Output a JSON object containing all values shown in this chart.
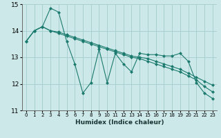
{
  "xlabel": "Humidex (Indice chaleur)",
  "bg_color": "#cce8e8",
  "grid_color": "#a8d0d0",
  "line_color": "#1a7a6e",
  "xlim": [
    -0.5,
    23.5
  ],
  "ylim": [
    11,
    15
  ],
  "yticks": [
    11,
    12,
    13,
    14,
    15
  ],
  "xticks": [
    0,
    1,
    2,
    3,
    4,
    5,
    6,
    7,
    8,
    9,
    10,
    11,
    12,
    13,
    14,
    15,
    16,
    17,
    18,
    19,
    20,
    21,
    22,
    23
  ],
  "line1_x": [
    0,
    1,
    2,
    3,
    4,
    5,
    6,
    7,
    8,
    9,
    10,
    11,
    12,
    13,
    14,
    15,
    16,
    17,
    18,
    19,
    20,
    21,
    22,
    23
  ],
  "line1_y": [
    13.6,
    14.0,
    14.15,
    14.85,
    14.7,
    13.6,
    12.75,
    11.65,
    12.05,
    13.3,
    12.05,
    13.15,
    12.75,
    12.45,
    13.15,
    13.1,
    13.1,
    13.05,
    13.05,
    13.15,
    12.85,
    12.05,
    11.65,
    11.45
  ],
  "line2_x": [
    0,
    1,
    2,
    3,
    4,
    5,
    6,
    7,
    8,
    9,
    10,
    11,
    12,
    13,
    14,
    15,
    16,
    17,
    18,
    19,
    20,
    21,
    22,
    23
  ],
  "line2_y": [
    13.6,
    14.0,
    14.15,
    14.0,
    13.95,
    13.85,
    13.75,
    13.65,
    13.55,
    13.45,
    13.35,
    13.25,
    13.15,
    13.05,
    13.0,
    12.95,
    12.85,
    12.75,
    12.65,
    12.55,
    12.4,
    12.25,
    12.1,
    11.95
  ],
  "line3_x": [
    0,
    1,
    2,
    3,
    4,
    5,
    6,
    7,
    8,
    9,
    10,
    11,
    12,
    13,
    14,
    15,
    16,
    17,
    18,
    19,
    20,
    21,
    22,
    23
  ],
  "line3_y": [
    13.6,
    14.0,
    14.15,
    14.0,
    13.9,
    13.8,
    13.7,
    13.6,
    13.5,
    13.4,
    13.3,
    13.2,
    13.1,
    13.0,
    12.95,
    12.85,
    12.75,
    12.65,
    12.55,
    12.45,
    12.3,
    12.15,
    11.9,
    11.7
  ]
}
